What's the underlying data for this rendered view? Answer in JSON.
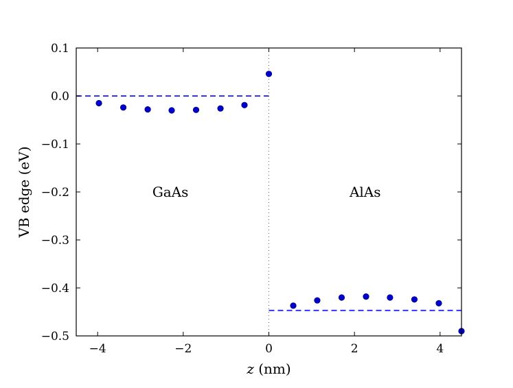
{
  "chart_data": {
    "type": "scatter",
    "title": "",
    "xlabel_var": "z",
    "xlabel_unit": " (nm)",
    "ylabel": "VB edge (eV)",
    "xlim": [
      -4.5,
      4.5
    ],
    "ylim": [
      -0.5,
      0.1
    ],
    "xticks": [
      -4,
      -2,
      0,
      2,
      4
    ],
    "xtick_labels": [
      "−4",
      "−2",
      "0",
      "2",
      "4"
    ],
    "yticks": [
      0.1,
      0.0,
      -0.1,
      -0.2,
      -0.3,
      -0.4,
      -0.5
    ],
    "ytick_labels": [
      "0.1",
      "0.0",
      "−0.1",
      "−0.2",
      "−0.3",
      "−0.4",
      "−0.5"
    ],
    "grid": false,
    "series": [
      {
        "color": "#0000cc",
        "marker": "circle",
        "x": [
          -3.97,
          -3.4,
          -2.83,
          -2.27,
          -1.7,
          -1.13,
          -0.57,
          0.0,
          0.57,
          1.13,
          1.7,
          2.27,
          2.83,
          3.4,
          3.97,
          4.5
        ],
        "y": [
          -0.015,
          -0.024,
          -0.028,
          -0.03,
          -0.029,
          -0.026,
          -0.019,
          0.046,
          -0.437,
          -0.426,
          -0.42,
          -0.418,
          -0.42,
          -0.424,
          -0.432,
          -0.49
        ]
      }
    ],
    "reference_lines": [
      {
        "orientation": "horizontal",
        "y": 0.0,
        "x_range": [
          -4.5,
          0.0
        ],
        "style": "dashed",
        "color": "#3333ff"
      },
      {
        "orientation": "horizontal",
        "y": -0.447,
        "x_range": [
          0.0,
          4.5
        ],
        "style": "dashed",
        "color": "#3333ff"
      },
      {
        "orientation": "vertical",
        "x": 0.0,
        "style": "dotted",
        "color": "#555555"
      }
    ],
    "annotations": [
      {
        "text": "GaAs",
        "x": -2.3,
        "y": -0.2
      },
      {
        "text": "AlAs",
        "x": 2.25,
        "y": -0.2
      }
    ]
  }
}
